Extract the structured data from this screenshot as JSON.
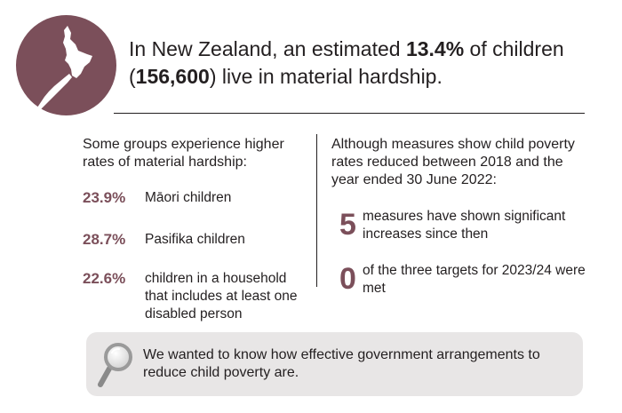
{
  "header": {
    "line1_prefix": "In New Zealand, an estimated ",
    "line1_percent": "13.4%",
    "line1_suffix": " of children",
    "line2_open": "(",
    "line2_count": "156,600",
    "line2_suffix": ") live in material hardship."
  },
  "left": {
    "intro": "Some groups experience higher rates of material hardship:",
    "stats": [
      {
        "value": "23.9%",
        "label": "Māori children"
      },
      {
        "value": "28.7%",
        "label": "Pasifika children"
      },
      {
        "value": "22.6%",
        "label": "children in a household that includes at least one disabled person"
      }
    ]
  },
  "right": {
    "intro": "Although measures show child poverty rates reduced between 2018 and the year ended 30 June 2022:",
    "measures": [
      {
        "value": "5",
        "label": "measures have shown significant increases since then"
      },
      {
        "value": "0",
        "label": "of the three targets for 2023/24 were met"
      }
    ]
  },
  "callout": {
    "text": "We wanted to know how effective government arrangements to reduce child poverty are.",
    "icon": "magnifying-glass-icon"
  },
  "colors": {
    "accent": "#7b4f5a",
    "callout_bg": "#e8e6e6",
    "text": "#231f20"
  }
}
